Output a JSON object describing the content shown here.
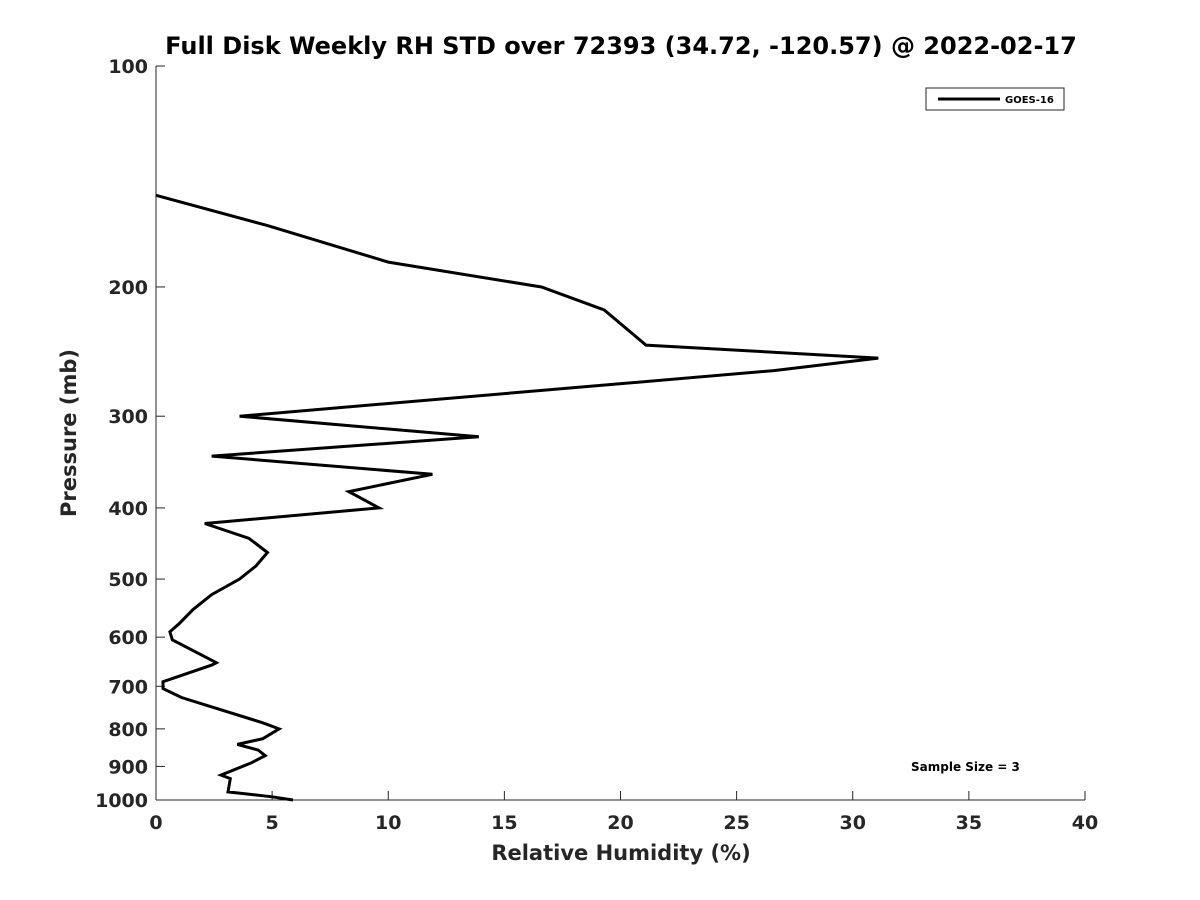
{
  "chart_data": {
    "type": "line",
    "title": "Full Disk Weekly RH STD over 72393 (34.72, -120.57) @ 2022-02-17",
    "xlabel": "Relative Humidity (%)",
    "ylabel": "Pressure (mb)",
    "xlim": [
      0,
      40
    ],
    "ylim": [
      100,
      1000
    ],
    "y_scale": "log",
    "y_reversed": true,
    "x_ticks": [
      0,
      5,
      10,
      15,
      20,
      25,
      30,
      35,
      40
    ],
    "y_ticks": [
      100,
      200,
      300,
      400,
      500,
      600,
      700,
      800,
      900,
      1000
    ],
    "grid": false,
    "legend_position": "top-right",
    "annotation": "Sample Size = 3",
    "series": [
      {
        "name": "GOES-16",
        "color": "#000000",
        "points": [
          [
            0.0,
            150
          ],
          [
            4.8,
            165
          ],
          [
            10.0,
            185
          ],
          [
            16.6,
            200
          ],
          [
            19.3,
            215
          ],
          [
            21.1,
            240
          ],
          [
            31.1,
            250
          ],
          [
            26.6,
            260
          ],
          [
            3.6,
            300
          ],
          [
            13.9,
            320
          ],
          [
            2.4,
            340
          ],
          [
            11.9,
            360
          ],
          [
            8.3,
            380
          ],
          [
            9.6,
            400
          ],
          [
            2.1,
            420
          ],
          [
            4.0,
            440
          ],
          [
            4.8,
            460
          ],
          [
            4.3,
            480
          ],
          [
            3.6,
            500
          ],
          [
            2.4,
            525
          ],
          [
            1.6,
            550
          ],
          [
            1.0,
            575
          ],
          [
            0.6,
            590
          ],
          [
            0.7,
            605
          ],
          [
            2.6,
            650
          ],
          [
            2.4,
            655
          ],
          [
            0.3,
            690
          ],
          [
            0.3,
            705
          ],
          [
            1.1,
            725
          ],
          [
            4.6,
            785
          ],
          [
            5.3,
            800
          ],
          [
            4.6,
            825
          ],
          [
            3.5,
            840
          ],
          [
            4.4,
            855
          ],
          [
            4.7,
            870
          ],
          [
            4.1,
            890
          ],
          [
            2.8,
            925
          ],
          [
            3.2,
            935
          ],
          [
            3.1,
            975
          ],
          [
            5.0,
            990
          ],
          [
            5.9,
            1000
          ]
        ]
      }
    ]
  }
}
